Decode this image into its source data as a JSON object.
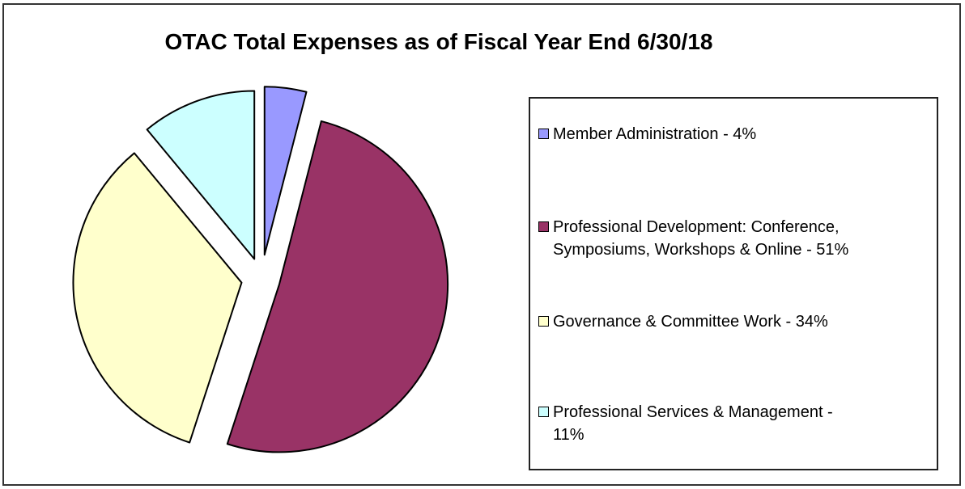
{
  "chart_data": {
    "type": "pie",
    "title": "OTAC Total Expenses as of Fiscal Year End 6/30/18",
    "exploded": true,
    "legend_position": "right",
    "slices": [
      {
        "label": "Member Administration - 4%",
        "value": 4,
        "color": "#9999ff"
      },
      {
        "label": "Professional Development: Conference,\nSymposiums, Workshops & Online - 51%",
        "value": 51,
        "color": "#993366"
      },
      {
        "label": "Governance & Committee Work - 34%",
        "value": 34,
        "color": "#ffffcc"
      },
      {
        "label": "Professional Services & Management -\n11%",
        "value": 11,
        "color": "#ccffff"
      }
    ]
  }
}
